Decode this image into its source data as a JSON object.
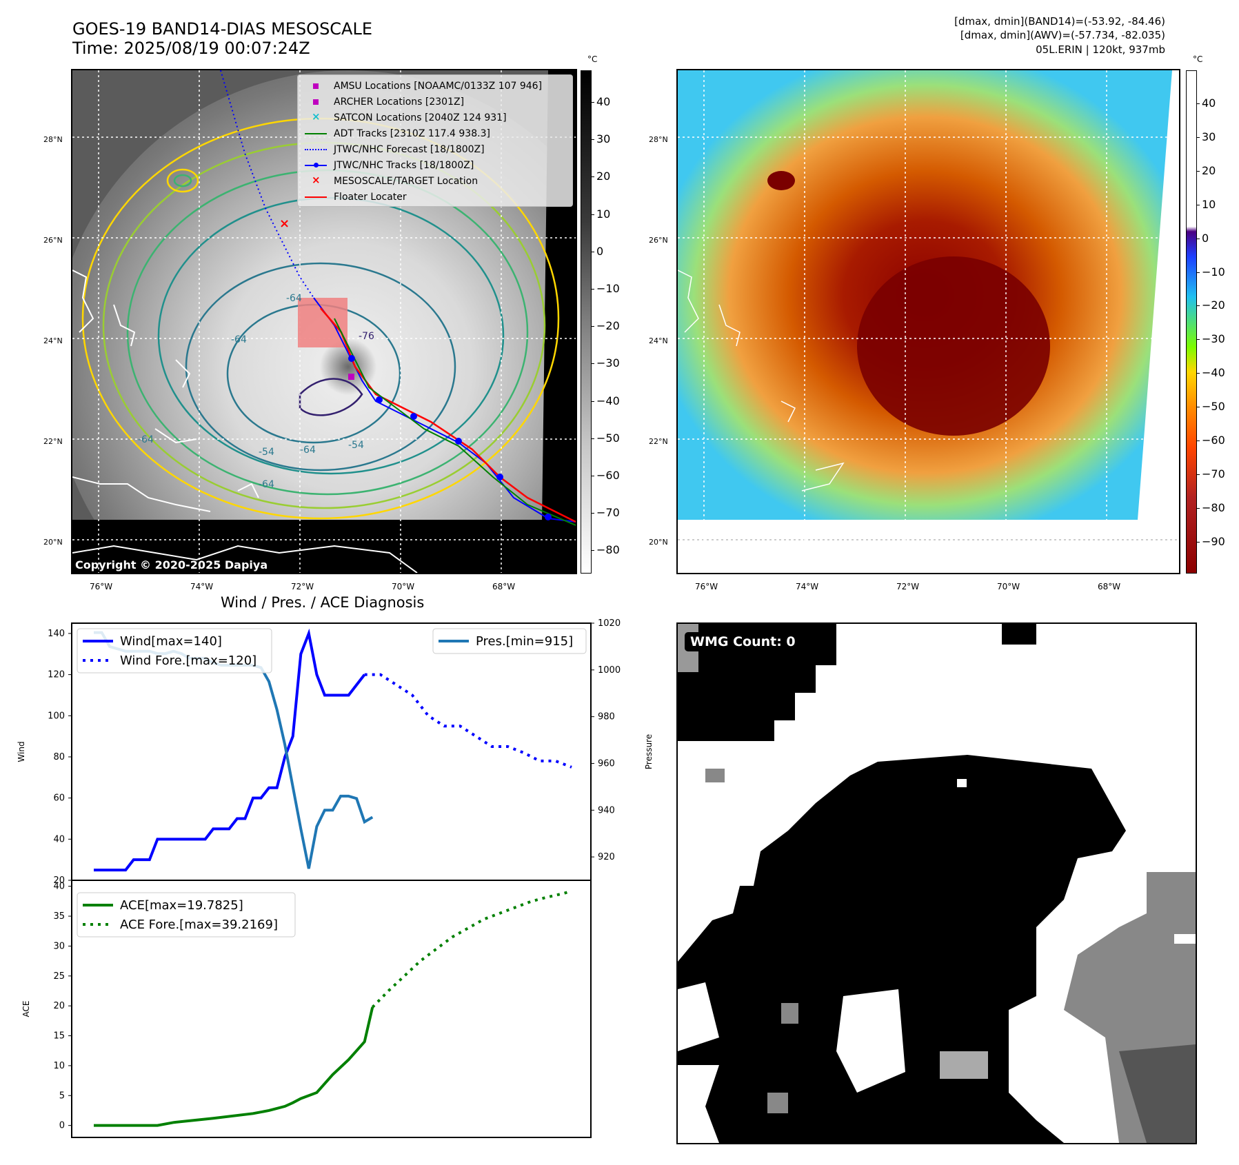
{
  "header": {
    "title_line1": "GOES-19 BAND14-DIAS MESOSCALE",
    "title_line2": "Time: 2025/08/19 00:07:24Z",
    "stats_line1": "[dmax, dmin](BAND14)=(-53.92, -84.46)",
    "stats_line2": "[dmax, dmin](AWV)=(-57.734, -82.035)",
    "stats_line3": "05L.ERIN | 120kt, 937mb"
  },
  "map": {
    "lat_labels": [
      "28°N",
      "26°N",
      "24°N",
      "22°N",
      "20°N"
    ],
    "lon_labels": [
      "76°W",
      "74°W",
      "72°W",
      "70°W",
      "68°W"
    ],
    "copyright": "Copyright © 2020-2025 Dapiya",
    "contour_labels": [
      "-64",
      "-76",
      "-64",
      "-64",
      "-54",
      "-64",
      "-64",
      "-54"
    ],
    "legend": [
      {
        "label": "AMSU Locations [NOAAMC/0133Z 107 946]",
        "color": "#bf00bf",
        "marker": "square"
      },
      {
        "label": "ARCHER Locations [2301Z]",
        "color": "#bf00bf",
        "marker": "square"
      },
      {
        "label": "SATCON Locations [2040Z 124 931]",
        "color": "#17becf",
        "marker": "x"
      },
      {
        "label": "ADT Tracks [2310Z 117.4 938.3]",
        "color": "#008000",
        "marker": "line"
      },
      {
        "label": "JTWC/NHC Forecast [18/1800Z]",
        "color": "#0000ff",
        "marker": "dotted"
      },
      {
        "label": "JTWC/NHC Tracks [18/1800Z]",
        "color": "#0000ff",
        "marker": "line-dot"
      },
      {
        "label": "MESOSCALE/TARGET Location",
        "color": "#ff0000",
        "marker": "x"
      },
      {
        "label": "Floater Locater",
        "color": "#ff0000",
        "marker": "line"
      }
    ]
  },
  "colorbars": {
    "unit": "°C",
    "gray_ticks": [
      "40",
      "30",
      "20",
      "10",
      "0",
      "−10",
      "−20",
      "−30",
      "−40",
      "−50",
      "−60",
      "−70",
      "−80"
    ],
    "color_ticks": [
      "40",
      "30",
      "20",
      "10",
      "0",
      "−10",
      "−20",
      "−30",
      "−40",
      "−50",
      "−60",
      "−70",
      "−80",
      "−90"
    ]
  },
  "wmg": {
    "label": "WMG Count: 0"
  },
  "colors": {
    "wind": "#0000ff",
    "pressure": "#1f77b4",
    "ace": "#008000",
    "track_red": "#ff0000"
  },
  "chart_data": [
    {
      "type": "line",
      "title": "Wind / Pres. / ACE Diagnosis",
      "ylabel": "Wind",
      "ylabel_right": "Pressure",
      "ylim": [
        20,
        145
      ],
      "ylim_right": [
        910,
        1020
      ],
      "yticks": [
        20,
        40,
        60,
        80,
        100,
        120,
        140
      ],
      "yticks_right": [
        920,
        940,
        960,
        980,
        1000,
        1020
      ],
      "series": [
        {
          "name": "Wind[max=140]",
          "axis": "left",
          "style": "solid",
          "x": [
            0,
            2,
            4,
            6,
            8,
            10,
            12,
            14,
            16,
            18,
            20,
            22,
            24,
            26,
            28,
            30,
            32,
            34,
            36,
            38,
            40,
            42,
            44,
            46,
            48,
            50,
            52,
            54,
            56,
            58,
            60,
            62,
            64,
            66,
            68
          ],
          "values": [
            25,
            25,
            25,
            25,
            25,
            30,
            30,
            30,
            40,
            40,
            40,
            40,
            40,
            40,
            40,
            45,
            45,
            45,
            50,
            50,
            60,
            60,
            65,
            65,
            80,
            90,
            130,
            140,
            120,
            110,
            110,
            110,
            110,
            115,
            120
          ]
        },
        {
          "name": "Wind Fore.[max=120]",
          "axis": "left",
          "style": "dotted",
          "x": [
            68,
            72,
            76,
            80,
            84,
            88,
            92,
            96,
            100,
            104,
            108,
            112,
            116,
            120
          ],
          "values": [
            120,
            120,
            115,
            110,
            100,
            95,
            95,
            90,
            85,
            85,
            82,
            78,
            78,
            75
          ]
        },
        {
          "name": "Pres.[min=915]",
          "axis": "right",
          "style": "solid",
          "x": [
            0,
            2,
            4,
            6,
            8,
            10,
            12,
            14,
            16,
            18,
            20,
            22,
            24,
            26,
            28,
            30,
            32,
            34,
            36,
            38,
            40,
            42,
            44,
            46,
            48,
            50,
            52,
            54,
            56,
            58,
            60,
            62,
            64,
            66,
            68,
            70
          ],
          "values": [
            1016,
            1016,
            1010,
            1009,
            1008,
            1008,
            1008,
            1008,
            1007,
            1007,
            1008,
            1007,
            1005,
            1005,
            1005,
            1003,
            1002,
            1002,
            1002,
            1002,
            1002,
            1001,
            995,
            983,
            968,
            950,
            932,
            915,
            933,
            940,
            940,
            946,
            946,
            945,
            935,
            937
          ]
        }
      ]
    },
    {
      "type": "line",
      "ylabel": "ACE",
      "ylim": [
        -2,
        41
      ],
      "yticks": [
        0,
        5,
        10,
        15,
        20,
        25,
        30,
        35,
        40
      ],
      "series": [
        {
          "name": "ACE[max=19.7825]",
          "style": "solid",
          "x": [
            0,
            10,
            16,
            20,
            30,
            40,
            44,
            48,
            50,
            52,
            56,
            60,
            64,
            68,
            70
          ],
          "values": [
            0,
            0,
            0,
            0.5,
            1.2,
            2.0,
            2.5,
            3.2,
            3.8,
            4.5,
            5.5,
            8.5,
            11,
            14,
            19.78
          ]
        },
        {
          "name": "ACE Fore.[max=39.2169]",
          "style": "dotted",
          "x": [
            70,
            74,
            78,
            82,
            86,
            90,
            94,
            98,
            102,
            106,
            110,
            114,
            118,
            120
          ],
          "values": [
            19.78,
            22.5,
            25,
            27.5,
            29.5,
            31.5,
            33,
            34.5,
            35.5,
            36.5,
            37.5,
            38.2,
            38.8,
            39.22
          ]
        }
      ]
    }
  ]
}
